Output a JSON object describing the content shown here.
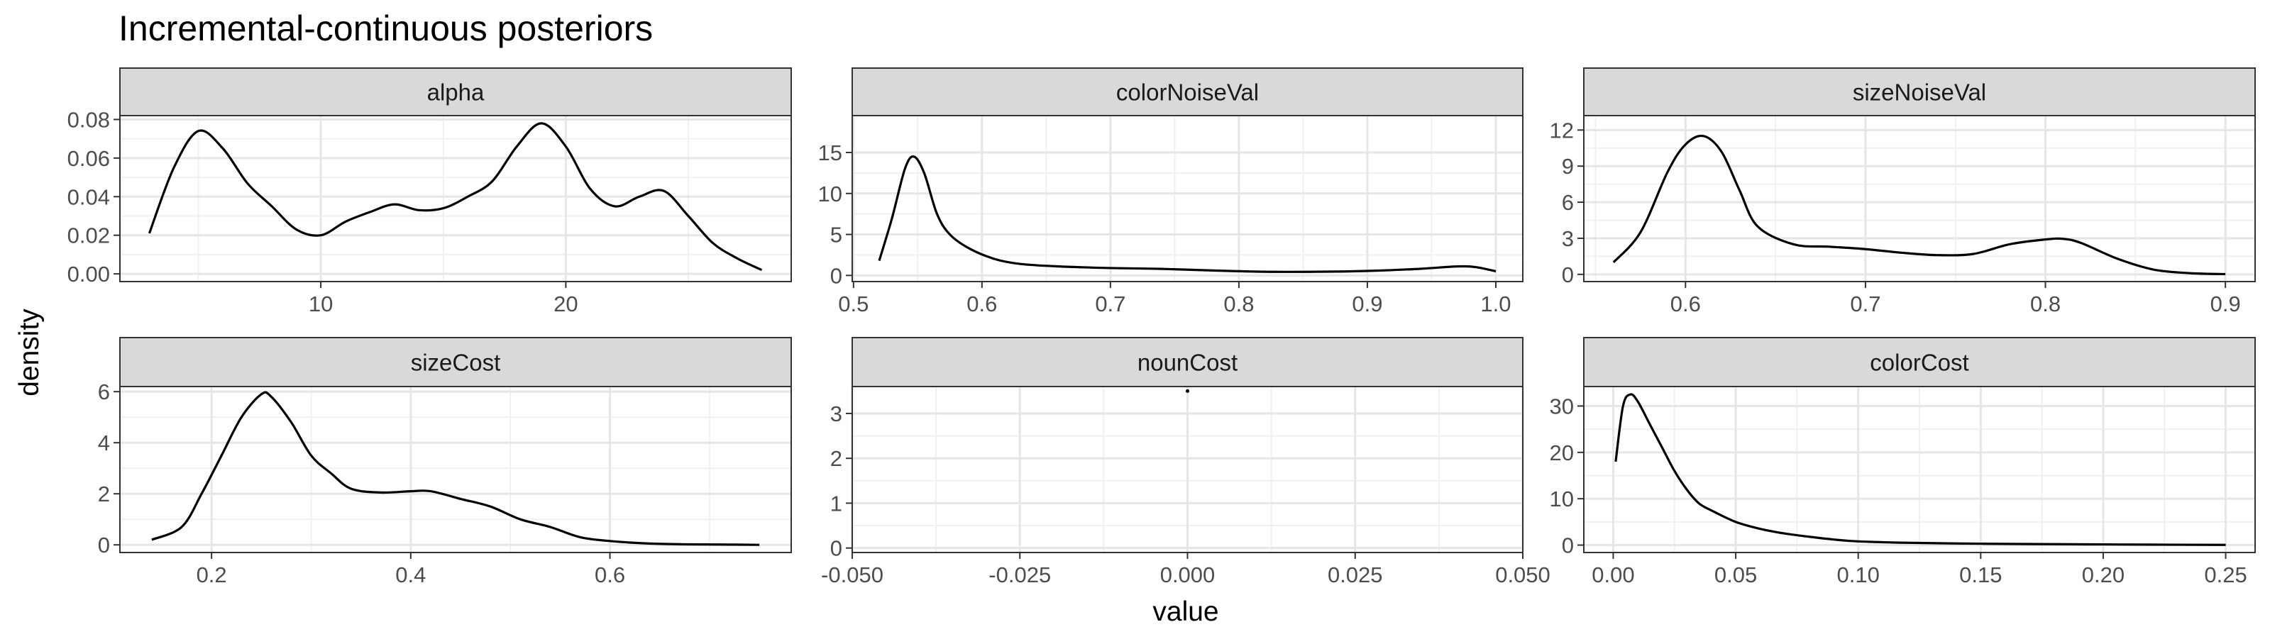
{
  "chart_data": {
    "type": "line",
    "title": "Incremental-continuous posteriors",
    "xlabel": "value",
    "ylabel": "density",
    "grid": true,
    "panels": [
      {
        "name": "alpha",
        "xlim": [
          1.8,
          29.2
        ],
        "ylim": [
          -0.004,
          0.082
        ],
        "x_ticks": [
          10,
          20
        ],
        "x_tick_labels": [
          "10",
          "20"
        ],
        "y_ticks": [
          0,
          0.02,
          0.04,
          0.06,
          0.08
        ],
        "y_tick_labels": [
          "0.00",
          "0.02",
          "0.04",
          "0.06",
          "0.08"
        ],
        "x": [
          3.0,
          4.0,
          5.0,
          6.0,
          7.0,
          8.0,
          9.0,
          10.0,
          11.0,
          12.0,
          13.0,
          14.0,
          15.0,
          16.0,
          17.0,
          18.0,
          19.0,
          20.0,
          21.0,
          22.0,
          23.0,
          24.0,
          25.0,
          26.0,
          27.0,
          28.0
        ],
        "y": [
          0.021,
          0.055,
          0.074,
          0.065,
          0.047,
          0.035,
          0.023,
          0.02,
          0.027,
          0.032,
          0.036,
          0.033,
          0.034,
          0.04,
          0.048,
          0.066,
          0.078,
          0.066,
          0.044,
          0.035,
          0.04,
          0.043,
          0.03,
          0.016,
          0.008,
          0.002
        ]
      },
      {
        "name": "colorNoiseVal",
        "xlim": [
          0.499,
          1.021
        ],
        "ylim": [
          -0.75,
          19.5
        ],
        "x_ticks": [
          0.5,
          0.6,
          0.7,
          0.8,
          0.9,
          1.0
        ],
        "x_tick_labels": [
          "0.5",
          "0.6",
          "0.7",
          "0.8",
          "0.9",
          "1.0"
        ],
        "y_ticks": [
          0,
          5,
          10,
          15
        ],
        "y_tick_labels": [
          "0",
          "5",
          "10",
          "15"
        ],
        "x": [
          0.52,
          0.53,
          0.54,
          0.547,
          0.555,
          0.565,
          0.575,
          0.59,
          0.61,
          0.63,
          0.66,
          0.7,
          0.74,
          0.78,
          0.82,
          0.86,
          0.9,
          0.94,
          0.97,
          0.985,
          1.0
        ],
        "y": [
          1.8,
          7.0,
          13.0,
          14.5,
          12.5,
          7.5,
          5.0,
          3.3,
          2.0,
          1.4,
          1.1,
          0.9,
          0.8,
          0.6,
          0.45,
          0.45,
          0.55,
          0.8,
          1.1,
          1.0,
          0.5
        ]
      },
      {
        "name": "sizeNoiseVal",
        "xlim": [
          0.5435,
          0.9165
        ],
        "ylim": [
          -0.6,
          13.2
        ],
        "x_ticks": [
          0.6,
          0.7,
          0.8,
          0.9
        ],
        "x_tick_labels": [
          "0.6",
          "0.7",
          "0.8",
          "0.9"
        ],
        "y_ticks": [
          0,
          3,
          6,
          9,
          12
        ],
        "y_tick_labels": [
          "0",
          "3",
          "6",
          "9",
          "12"
        ],
        "x": [
          0.56,
          0.575,
          0.59,
          0.6,
          0.61,
          0.62,
          0.63,
          0.64,
          0.66,
          0.68,
          0.7,
          0.72,
          0.74,
          0.76,
          0.78,
          0.8,
          0.81,
          0.82,
          0.84,
          0.86,
          0.88,
          0.9
        ],
        "y": [
          1.0,
          3.5,
          8.5,
          10.8,
          11.5,
          10.2,
          7.0,
          4.0,
          2.5,
          2.3,
          2.1,
          1.8,
          1.6,
          1.7,
          2.5,
          2.9,
          2.95,
          2.6,
          1.3,
          0.4,
          0.1,
          0.02
        ]
      },
      {
        "name": "sizeCost",
        "xlim": [
          0.108,
          0.782
        ],
        "ylim": [
          -0.3,
          6.2
        ],
        "x_ticks": [
          0.2,
          0.4,
          0.6
        ],
        "x_tick_labels": [
          "0.2",
          "0.4",
          "0.6"
        ],
        "y_ticks": [
          0,
          2,
          4,
          6
        ],
        "y_tick_labels": [
          "0",
          "2",
          "4",
          "6"
        ],
        "x": [
          0.14,
          0.17,
          0.19,
          0.21,
          0.23,
          0.25,
          0.26,
          0.28,
          0.3,
          0.32,
          0.34,
          0.37,
          0.4,
          0.42,
          0.45,
          0.48,
          0.51,
          0.54,
          0.57,
          0.6,
          0.64,
          0.68,
          0.72,
          0.75
        ],
        "y": [
          0.2,
          0.7,
          2.0,
          3.5,
          5.0,
          5.9,
          5.8,
          4.8,
          3.5,
          2.8,
          2.2,
          2.05,
          2.1,
          2.1,
          1.8,
          1.5,
          1.0,
          0.7,
          0.3,
          0.15,
          0.05,
          0.02,
          0.01,
          0.0
        ]
      },
      {
        "name": "nounCost",
        "xlim": [
          -0.05,
          0.05
        ],
        "ylim": [
          -0.1,
          3.6
        ],
        "x_ticks": [
          -0.05,
          -0.025,
          0,
          0.025,
          0.05
        ],
        "x_tick_labels": [
          "-0.050",
          "-0.025",
          "0.000",
          "0.025",
          "0.050"
        ],
        "y_ticks": [
          0,
          1,
          2,
          3
        ],
        "y_tick_labels": [
          "0",
          "1",
          "2",
          "3"
        ],
        "x": [
          0.0
        ],
        "y": [
          3.5
        ]
      },
      {
        "name": "colorCost",
        "xlim": [
          -0.012,
          0.262
        ],
        "ylim": [
          -1.6,
          34.2
        ],
        "x_ticks": [
          0,
          0.05,
          0.1,
          0.15,
          0.2,
          0.25
        ],
        "x_tick_labels": [
          "0.00",
          "0.05",
          "0.10",
          "0.15",
          "0.20",
          "0.25"
        ],
        "y_ticks": [
          0,
          10,
          20,
          30
        ],
        "y_tick_labels": [
          "0",
          "10",
          "20",
          "30"
        ],
        "x": [
          0.001,
          0.004,
          0.007,
          0.01,
          0.015,
          0.02,
          0.025,
          0.03,
          0.035,
          0.04,
          0.05,
          0.06,
          0.07,
          0.08,
          0.09,
          0.1,
          0.12,
          0.15,
          0.18,
          0.2,
          0.22,
          0.25
        ],
        "y": [
          18.0,
          30.0,
          32.5,
          31.0,
          26.0,
          21.0,
          16.0,
          12.0,
          9.0,
          7.5,
          5.0,
          3.5,
          2.5,
          1.8,
          1.2,
          0.8,
          0.5,
          0.3,
          0.2,
          0.15,
          0.1,
          0.05
        ]
      }
    ]
  }
}
